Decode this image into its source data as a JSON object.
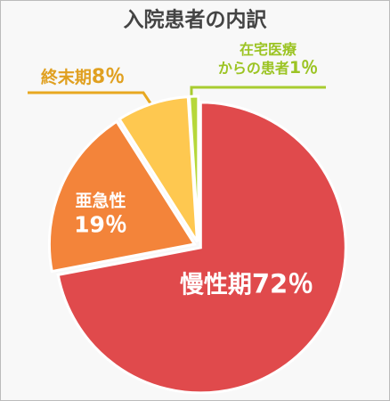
{
  "chart_data": {
    "type": "pie",
    "title": "入院患者の内訳",
    "categories": [
      "慢性期",
      "亜急性",
      "終末期",
      "在宅医療\nからの患者"
    ],
    "values": [
      72,
      19,
      8,
      1
    ],
    "value_labels": [
      "72％",
      "19％",
      "8％",
      "1％"
    ],
    "colors": [
      "#e04a4c",
      "#f3843a",
      "#fec850",
      "#b6d83a"
    ]
  }
}
